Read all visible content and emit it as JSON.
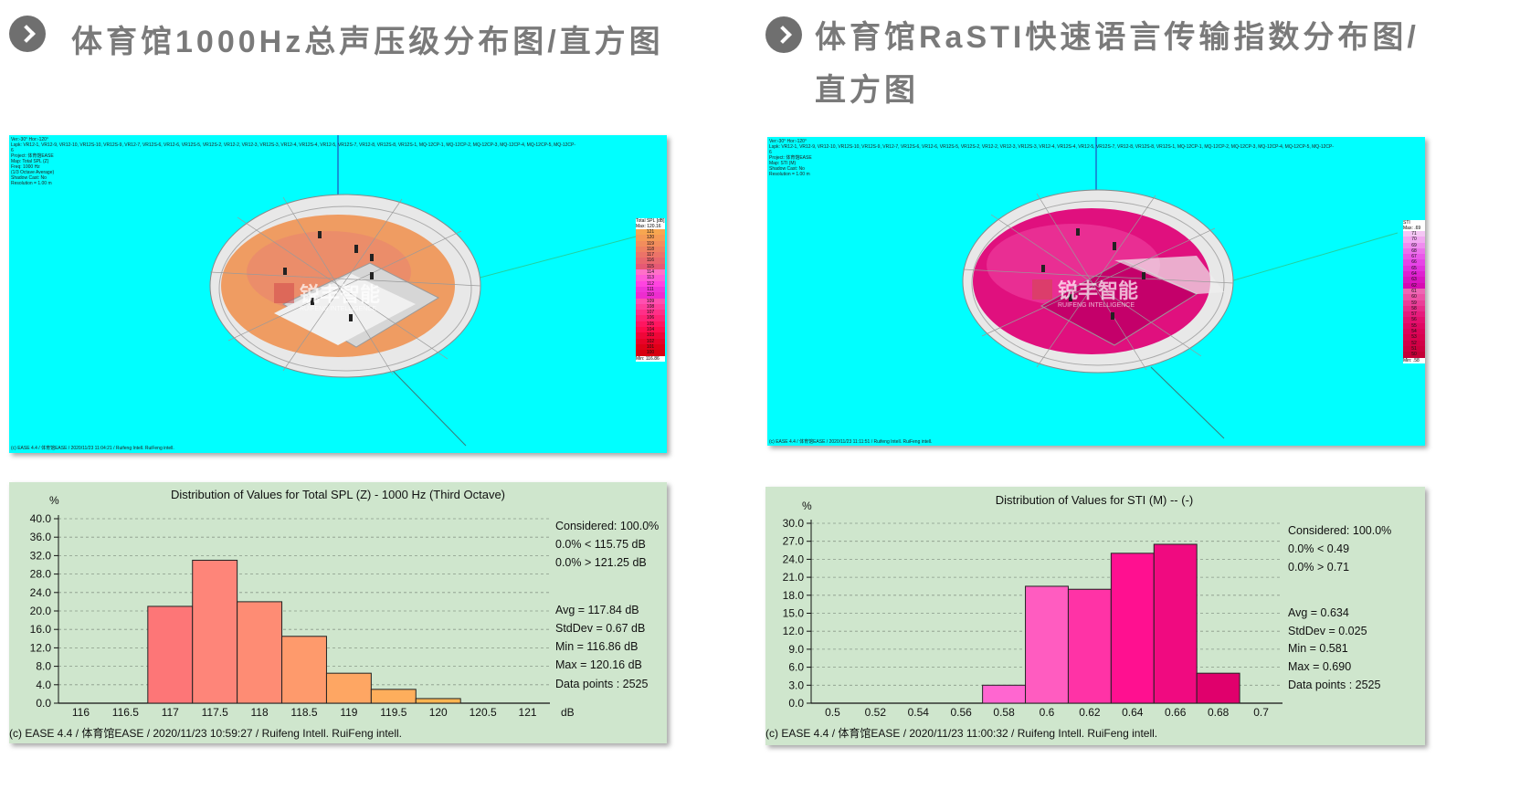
{
  "headings": {
    "left": "体育馆1000Hz总声压级分布图/直方图",
    "right_line1": "体育馆RaSTI快速语言传输指数分布图/",
    "right_line2": "直方图"
  },
  "watermark": {
    "name": "锐丰智能",
    "sub": "RUIFENG INTELLIGENCE"
  },
  "render_left": {
    "info": [
      "Ver:-30°  Hor:-120°",
      "Lspk: VR12-1, VR12-9, VR12-10, VR12S-10, VR12S-9, VR12-7, VR12S-6, VR12-6, VR12S-5, VR12S-2, VR12-2, VR12-3, VR12S-3, VR12-4, VR12S-4, VR12-5, VR12S-7, VR12-8, VR12S-8, VR12S-1, MQ-12CP-1, MQ-12CP-2, MQ-12CP-3, MQ-12CP-4, MQ-12CP-5, MQ-12CP-6",
      "Project: 体育馆EASE",
      "Map: Total SPL (Z)",
      "Freq: 1000 Hz",
      "(1/3 Octave Average)",
      "Shadow Cast: No",
      "Resolution = 1.00 m"
    ],
    "legend_title": "Total SPL [dB]",
    "legend_max": "Max: 120.16",
    "legend_min": "Min: 116.86",
    "legend_values": [
      "121",
      "120",
      "119",
      "118",
      "117",
      "116",
      "115",
      "114",
      "113",
      "112",
      "111",
      "110",
      "109",
      "108",
      "107",
      "106",
      "105",
      "104",
      "103",
      "102",
      "101",
      "100"
    ],
    "legend_colors": [
      "#f7a650",
      "#f59a56",
      "#f28d5c",
      "#ef8062",
      "#ec7368",
      "#e9666e",
      "#e65974",
      "#ff70c8",
      "#ff5ad8",
      "#ff44e0",
      "#f035d8",
      "#ee2ccf",
      "#ff4fb0",
      "#ff3f9c",
      "#ff2f88",
      "#ff2274",
      "#ff1660",
      "#ff0c4c",
      "#f00638",
      "#e80228",
      "#e00018",
      "#d80010"
    ],
    "footer": "(c) EASE 4.4 / 体育馆EASE  / 2020/11/23 11:04:21 / Ruifeng Intell. RuiFeng intell."
  },
  "render_right": {
    "info": [
      "Ver:-30°  Hor:-120°",
      "Lspk: VR12-1, VR12-9, VR12-10, VR12S-10, VR12S-9, VR12-7, VR12S-6, VR12-6, VR12S-5, VR12S-2, VR12-2, VR12-3, VR12S-3, VR12-4, VR12S-4, VR12-5, VR12S-7, VR12-8, VR12S-8, VR12S-1, MQ-12CP-1, MQ-12CP-2, MQ-12CP-3, MQ-12CP-4, MQ-12CP-5, MQ-12CP-6",
      "Project: 体育馆EASE",
      "Map: STI (M)",
      "Shadow Cast: No",
      "Resolution = 1.00 m"
    ],
    "legend_title": "STI",
    "legend_max": "Max: .69",
    "legend_min": "Min: .58",
    "legend_values": [
      "71",
      "70",
      "69",
      "68",
      "67",
      "66",
      "65",
      "64",
      "63",
      "62",
      "61",
      "60",
      "59",
      "58",
      "57",
      "56",
      "55",
      "54",
      "53",
      "52",
      "51",
      "50"
    ],
    "legend_colors": [
      "#f4c6f4",
      "#f2a8f2",
      "#ef8cef",
      "#ec70ec",
      "#e958e9",
      "#e644e6",
      "#e232de",
      "#de22d0",
      "#da16c2",
      "#d60cb2",
      "#ee66b4",
      "#ec52a6",
      "#ea3e98",
      "#e82c8a",
      "#e61c7c",
      "#e4106e",
      "#e00862",
      "#dc0458",
      "#d8024e",
      "#d20046",
      "#cc003e",
      "#c40036"
    ],
    "footer": "(c) EASE 4.4 / 体育馆EASE  / 2020/11/23 11:11:51 / Ruifeng Intell. RuiFeng intell."
  },
  "chart_data": [
    {
      "type": "bar",
      "title": "Distribution of Values for Total SPL (Z)  - 1000 Hz (Third Octave)",
      "ylabel": "%",
      "xunit": "dB",
      "ylim": [
        0,
        40
      ],
      "yticks": [
        "0.0",
        "4.0",
        "8.0",
        "12.0",
        "16.0",
        "20.0",
        "24.0",
        "28.0",
        "32.0",
        "36.0",
        "40.0"
      ],
      "xlim": [
        115.75,
        121.25
      ],
      "xticks": [
        "116",
        "116.5",
        "117",
        "117.5",
        "118",
        "118.5",
        "119",
        "119.5",
        "120",
        "120.5",
        "121"
      ],
      "bins": [
        {
          "from": 116.75,
          "to": 117.25,
          "value": 21.0,
          "color": "#fd7677"
        },
        {
          "from": 117.25,
          "to": 117.75,
          "value": 31.0,
          "color": "#fe8579"
        },
        {
          "from": 117.75,
          "to": 118.25,
          "value": 22.0,
          "color": "#fe8c74"
        },
        {
          "from": 118.25,
          "to": 118.75,
          "value": 14.5,
          "color": "#fe9a6c"
        },
        {
          "from": 118.75,
          "to": 119.25,
          "value": 6.5,
          "color": "#fea663"
        },
        {
          "from": 119.25,
          "to": 119.75,
          "value": 3.0,
          "color": "#feae5c"
        },
        {
          "from": 119.75,
          "to": 120.25,
          "value": 1.0,
          "color": "#fdb451"
        }
      ],
      "stats": [
        "Considered: 100.0%",
        "0.0%  < 115.75 dB",
        "0.0%  > 121.25 dB",
        "Avg = 117.84 dB",
        "StdDev = 0.67 dB",
        "Min = 116.86 dB",
        "Max = 120.16 dB",
        "Data points : 2525"
      ],
      "footer": "(c) EASE 4.4 / 体育馆EASE  / 2020/11/23 10:59:27 / Ruifeng Intell. RuiFeng intell."
    },
    {
      "type": "bar",
      "title": "Distribution of Values for STI (M)  -- (-)",
      "ylabel": "%",
      "xunit": "",
      "ylim": [
        0,
        30
      ],
      "yticks": [
        "0.0",
        "3.0",
        "6.0",
        "9.0",
        "12.0",
        "15.0",
        "18.0",
        "21.0",
        "24.0",
        "27.0",
        "30.0"
      ],
      "xlim": [
        0.49,
        0.71
      ],
      "xticks": [
        "0.5",
        "0.52",
        "0.54",
        "0.56",
        "0.58",
        "0.6",
        "0.62",
        "0.64",
        "0.66",
        "0.68",
        "0.7"
      ],
      "bins": [
        {
          "from": 0.57,
          "to": 0.59,
          "value": 3.0,
          "color": "#ff66d0"
        },
        {
          "from": 0.59,
          "to": 0.61,
          "value": 19.5,
          "color": "#ff5cc0"
        },
        {
          "from": 0.61,
          "to": 0.63,
          "value": 19.0,
          "color": "#ff33a6"
        },
        {
          "from": 0.63,
          "to": 0.65,
          "value": 25.0,
          "color": "#ff1090"
        },
        {
          "from": 0.65,
          "to": 0.67,
          "value": 26.5,
          "color": "#f00a80"
        },
        {
          "from": 0.67,
          "to": 0.69,
          "value": 5.0,
          "color": "#e0006c"
        }
      ],
      "stats": [
        "Considered: 100.0%",
        "0.0%  < 0.49",
        "0.0%  > 0.71",
        "Avg = 0.634",
        "StdDev = 0.025",
        "Min = 0.581",
        "Max = 0.690",
        "Data points : 2525"
      ],
      "footer": "(c) EASE 4.4 / 体育馆EASE  / 2020/11/23 11:00:32 / Ruifeng Intell. RuiFeng intell."
    }
  ]
}
